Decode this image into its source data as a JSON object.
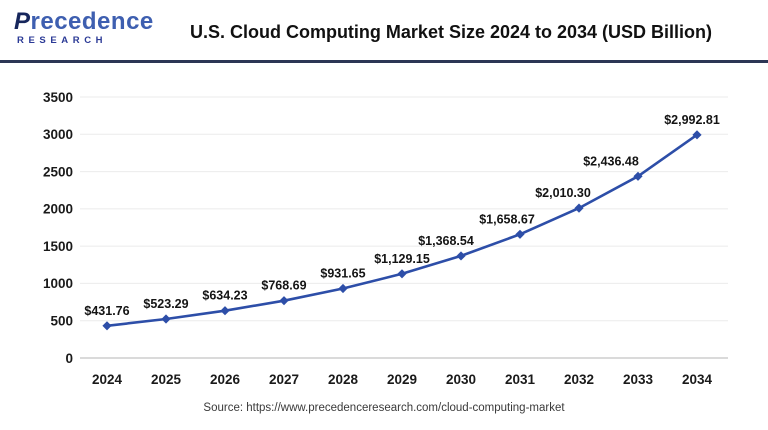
{
  "header": {
    "logo": {
      "brand_initial": "P",
      "brand_rest": "recedence",
      "subtext": "RESEARCH"
    }
  },
  "chart_data": {
    "type": "line",
    "title": "U.S. Cloud Computing Market Size 2024 to 2034 (USD Billion)",
    "categories": [
      "2024",
      "2025",
      "2026",
      "2027",
      "2028",
      "2029",
      "2030",
      "2031",
      "2032",
      "2033",
      "2034"
    ],
    "values": [
      431.76,
      523.29,
      634.23,
      768.69,
      931.65,
      1129.15,
      1368.54,
      1658.67,
      2010.3,
      2436.48,
      2992.81
    ],
    "point_labels": [
      "$431.76",
      "$523.29",
      "$634.23",
      "$768.69",
      "$931.65",
      "$1,129.15",
      "$1,368.54",
      "$1,658.67",
      "$2,010.30",
      "$2,436.48",
      "$2,992.81"
    ],
    "xlabel": "",
    "ylabel": "",
    "ylim": [
      0,
      3500
    ],
    "y_ticks": [
      0,
      500,
      1000,
      1500,
      2000,
      2500,
      3000,
      3500
    ],
    "grid": true,
    "legend": "none",
    "line_color": "#2d4ea8",
    "marker_color": "#2d4ea8",
    "grid_color": "#ebebeb",
    "axis_line_color": "#c4c4c4",
    "label_color": "#141414"
  },
  "footer": {
    "source": "Source: https://www.precedenceresearch.com/cloud-computing-market"
  }
}
